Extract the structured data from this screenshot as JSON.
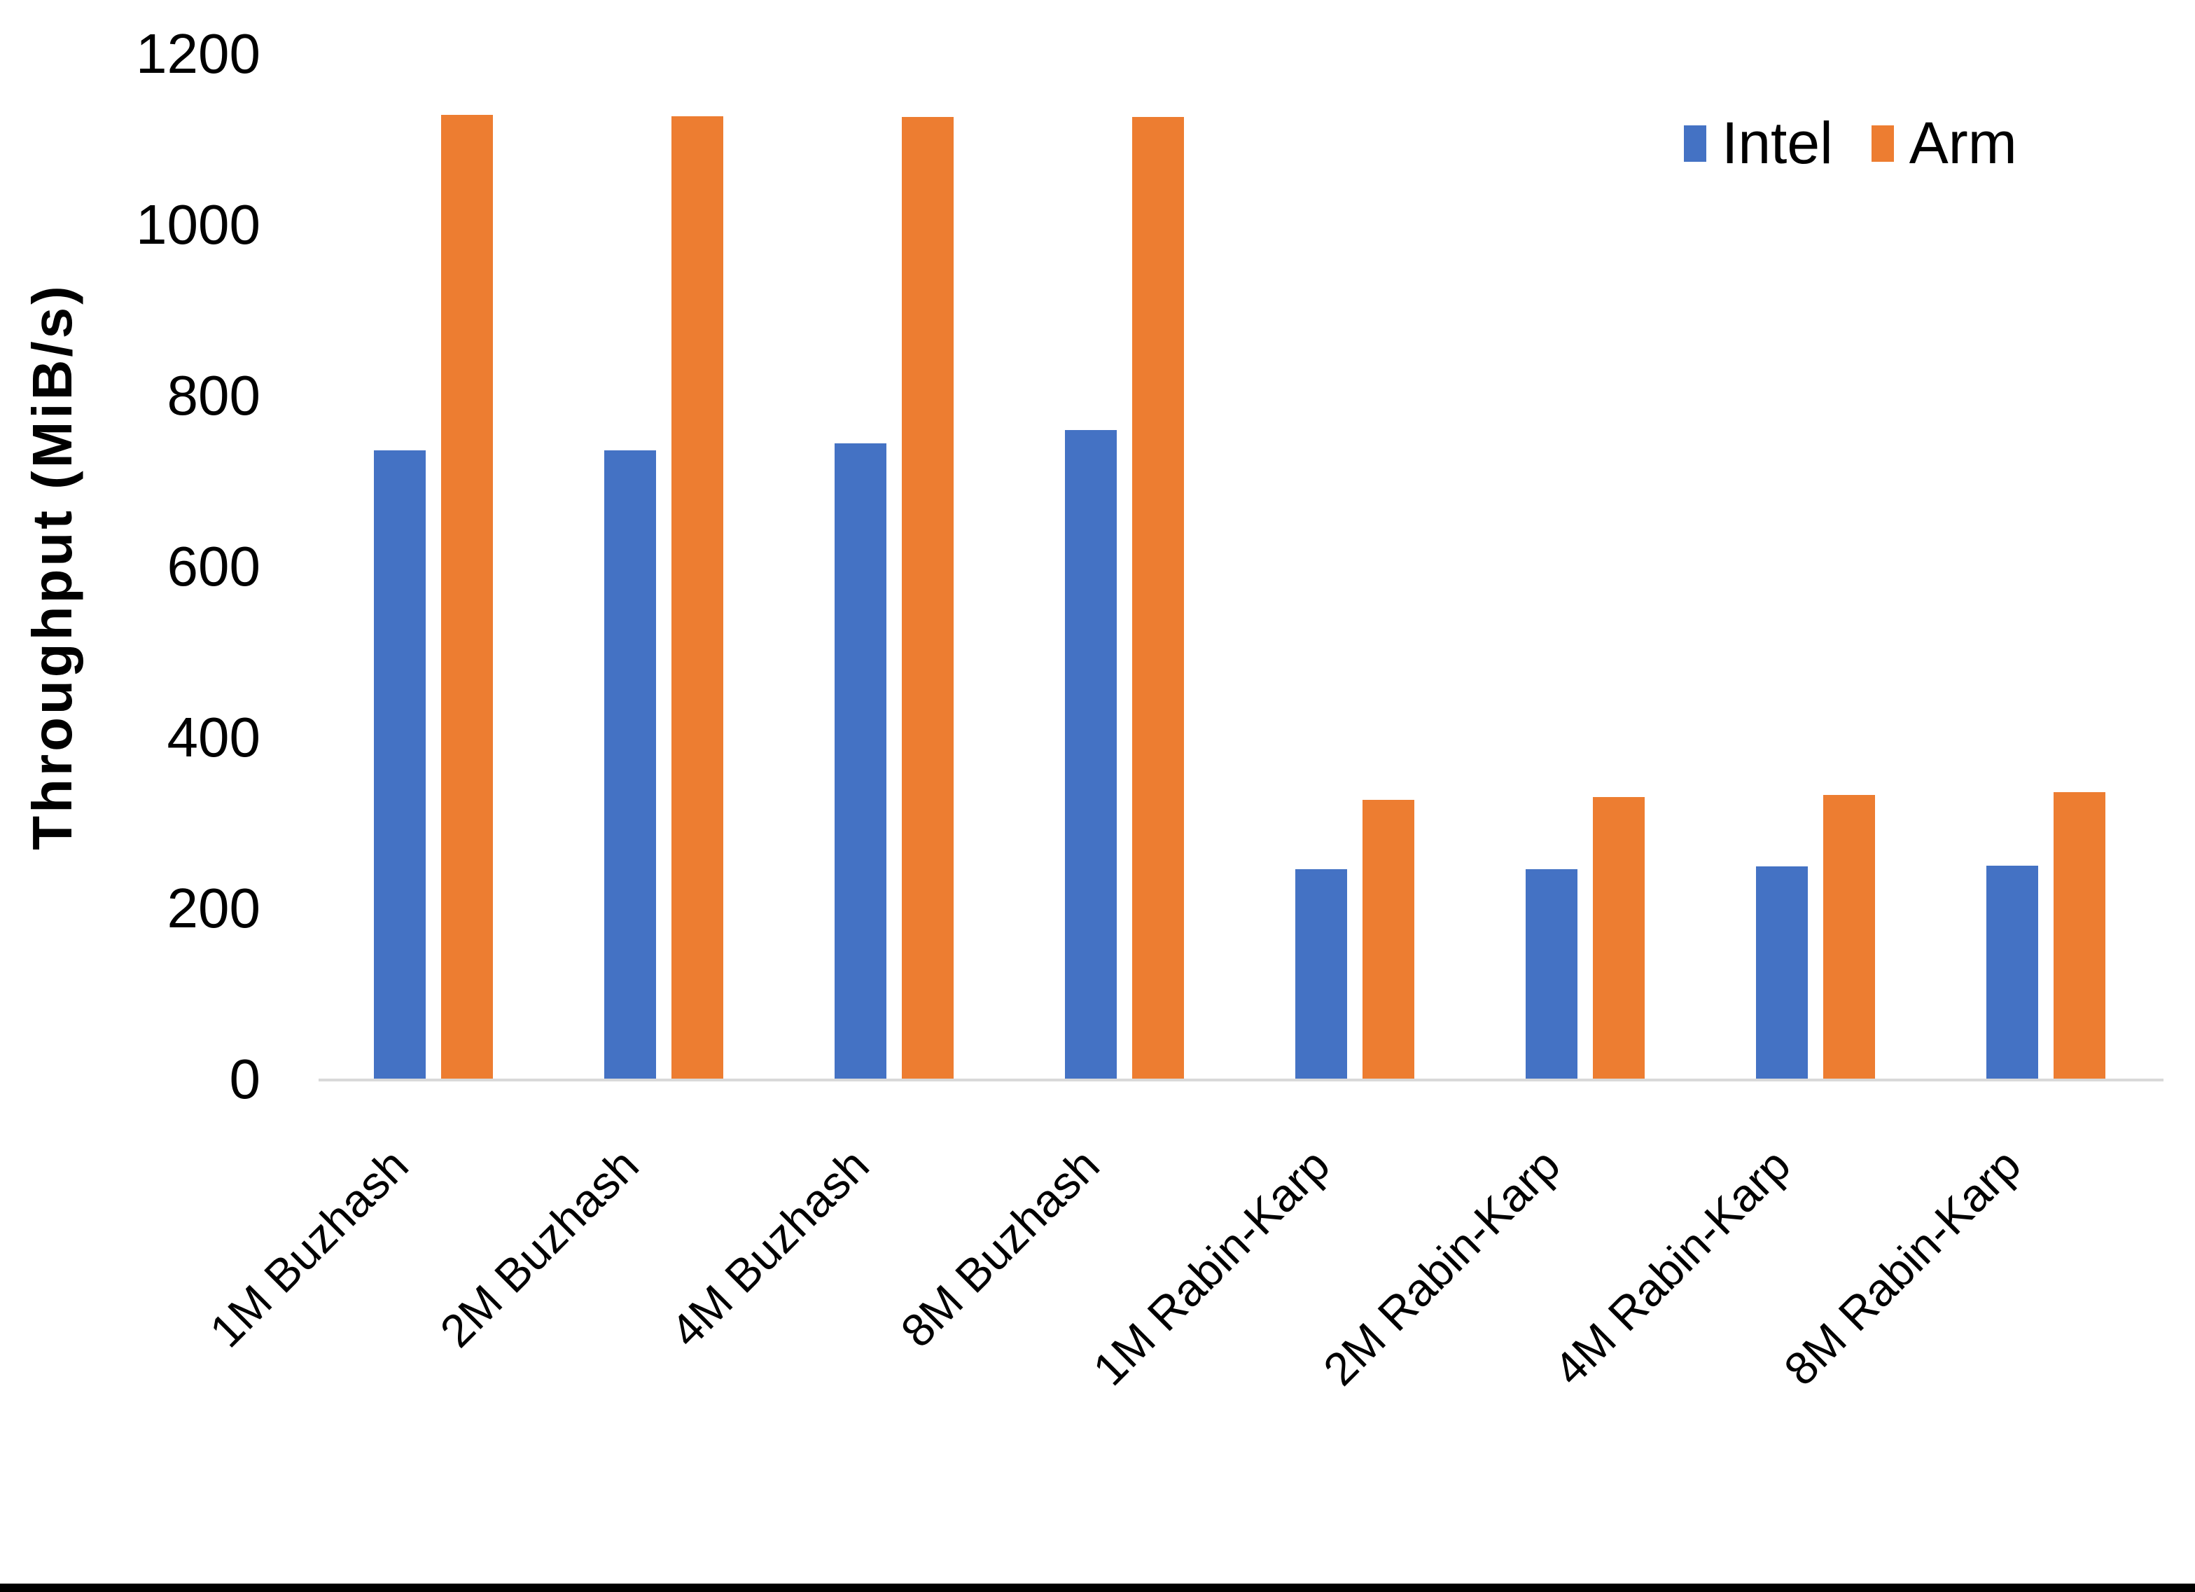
{
  "chart_data": {
    "type": "bar",
    "title": "",
    "xlabel": "",
    "ylabel": "Throughput (MiB/s)",
    "ylim": [
      0,
      1200
    ],
    "yticks": [
      0,
      200,
      400,
      600,
      800,
      1000,
      1200
    ],
    "grid": false,
    "legend_position": "top-right",
    "categories": [
      "1M Buzhash",
      "2M Buzhash",
      "4M Buzhash",
      "8M Buzhash",
      "1M Rabin-Karp",
      "2M Rabin-Karp",
      "4M Rabin-Karp",
      "8M Rabin-Karp"
    ],
    "series": [
      {
        "name": "Intel",
        "color": "#4472C4",
        "values": [
          736,
          736,
          744,
          760,
          246,
          246,
          249,
          250
        ]
      },
      {
        "name": "Arm",
        "color": "#ED7D31",
        "values": [
          1129,
          1127,
          1126,
          1126,
          327,
          330,
          333,
          336
        ]
      }
    ]
  },
  "colors": {
    "background": "#FFFFFF",
    "axis_line": "#D9D9D9",
    "text": "#000000",
    "bottom_border": "#000000"
  }
}
